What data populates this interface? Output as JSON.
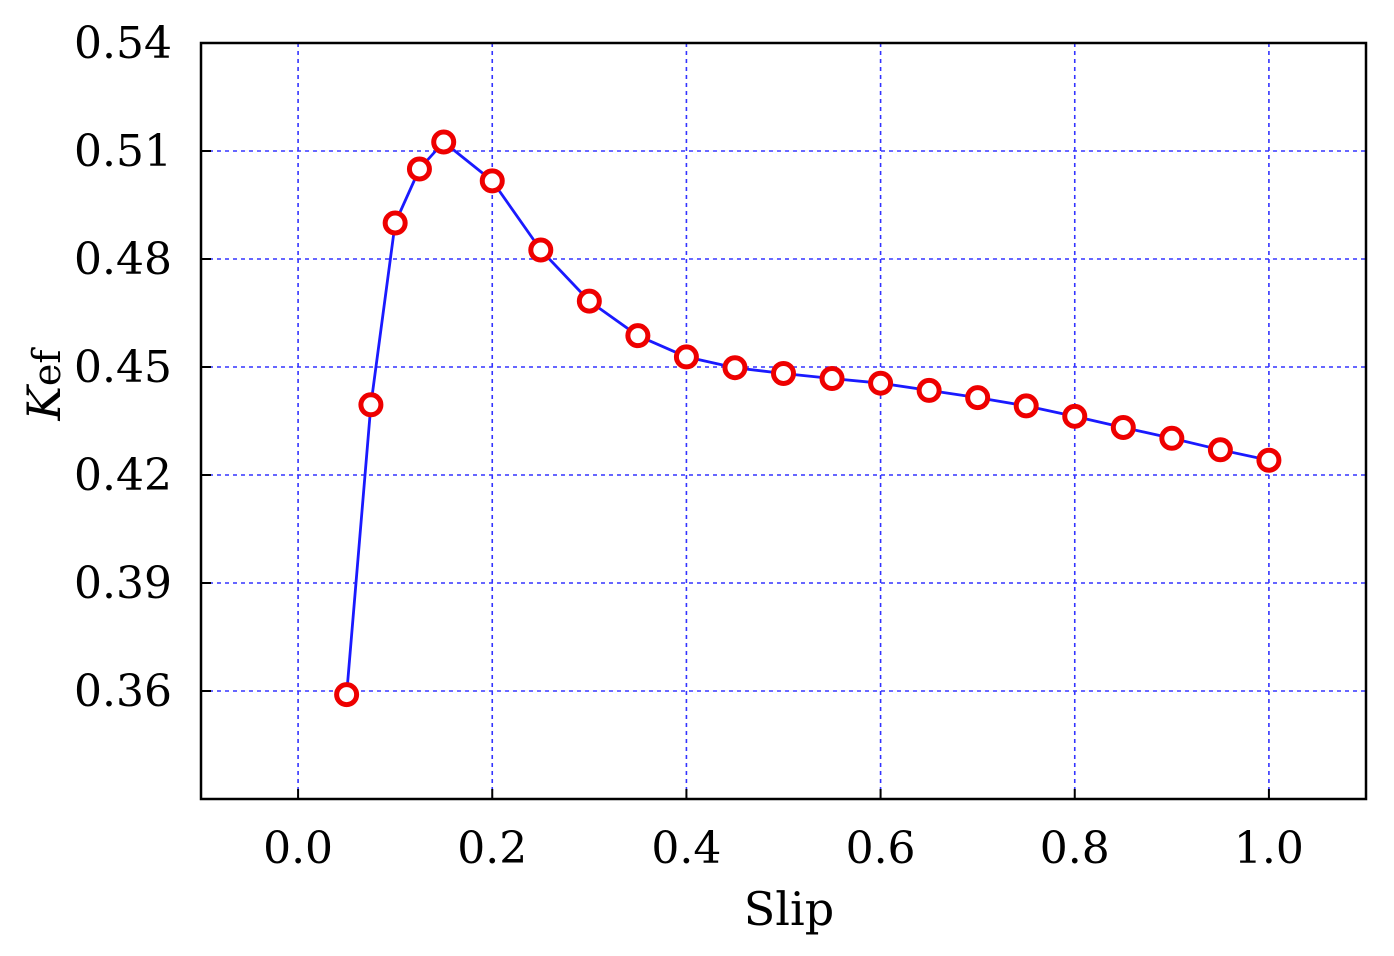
{
  "chart_data": {
    "type": "line",
    "xlabel": "Slip",
    "ylabel": {
      "main": "K",
      "sub": "ef"
    },
    "xlim": [
      -0.1,
      1.1
    ],
    "ylim": [
      0.33,
      0.54
    ],
    "xticks": [
      0.0,
      0.2,
      0.4,
      0.6,
      0.8,
      1.0
    ],
    "xtick_labels": [
      "0.0",
      "0.2",
      "0.4",
      "0.6",
      "0.8",
      "1.0"
    ],
    "yticks": [
      0.36,
      0.39,
      0.42,
      0.45,
      0.48,
      0.51,
      0.54
    ],
    "ytick_labels": [
      "0.36",
      "0.39",
      "0.42",
      "0.45",
      "0.48",
      "0.51",
      "0.54"
    ],
    "grid": true,
    "line_color": "#1a1aff",
    "grid_color": "#3333ff",
    "marker_color": "#ee0000",
    "series": [
      {
        "x": [
          0.05,
          0.075,
          0.1,
          0.125,
          0.15,
          0.2,
          0.25,
          0.3,
          0.35,
          0.4,
          0.45,
          0.5,
          0.55,
          0.6,
          0.65,
          0.7,
          0.75,
          0.8,
          0.85,
          0.9,
          0.95,
          1.0
        ],
        "y": [
          0.359,
          0.4395,
          0.49,
          0.505,
          0.5125,
          0.5017,
          0.4825,
          0.4683,
          0.4587,
          0.4528,
          0.4498,
          0.4482,
          0.4468,
          0.4455,
          0.4435,
          0.4415,
          0.4392,
          0.4363,
          0.4332,
          0.4302,
          0.427,
          0.4241
        ]
      }
    ]
  }
}
